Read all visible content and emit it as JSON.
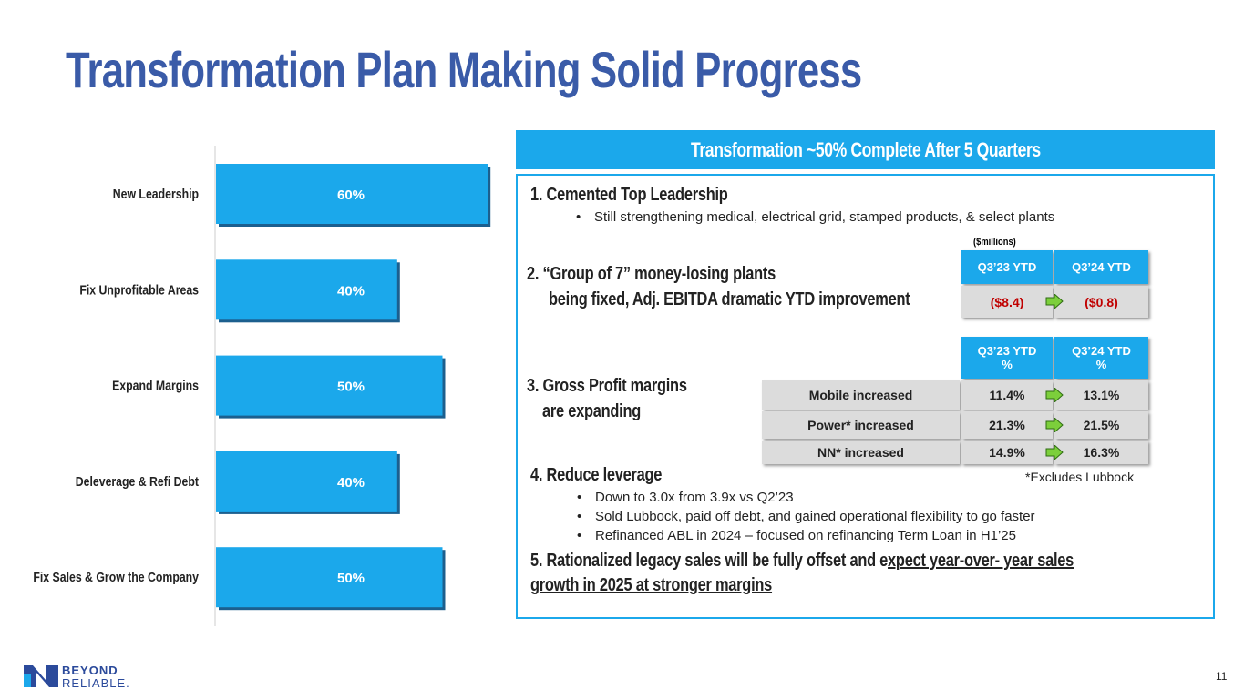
{
  "title": "Transformation Plan Making Solid Progress",
  "chart_data": {
    "type": "bar",
    "orientation": "horizontal",
    "categories": [
      "New Leadership",
      "Fix Unprofitable Areas",
      "Expand Margins",
      "Deleverage & Refi Debt",
      "Fix Sales & Grow the Company"
    ],
    "values": [
      60,
      40,
      50,
      40,
      50
    ],
    "value_labels": [
      "60%",
      "40%",
      "50%",
      "40%",
      "50%"
    ],
    "color": "#1ba8eb",
    "xlim": [
      0,
      100
    ]
  },
  "panel": {
    "banner": "Transformation ~50% Complete After 5 Quarters",
    "item1": {
      "heading": "1. Cemented Top Leadership",
      "bullets": [
        "Still strengthening medical, electrical grid, stamped products, & select plants"
      ]
    },
    "item2": {
      "lines": [
        "2. “Group of 7” money-losing plants",
        "being fixed, Adj. EBITDA dramatic YTD  improvement"
      ]
    },
    "ebitda_table": {
      "unit": "($millions)",
      "headers": [
        "Q3’23 YTD",
        "Q3’24 YTD"
      ],
      "values": [
        "($8.4)",
        "($0.8)"
      ]
    },
    "item3": {
      "lines": [
        "3. Gross Profit margins",
        "are expanding"
      ]
    },
    "margin_table": {
      "headers": [
        {
          "top": "Q3’23 YTD",
          "bottom": "%"
        },
        {
          "top": "Q3’24 YTD",
          "bottom": "%"
        }
      ],
      "rows": [
        [
          "Mobile increased",
          "11.4%",
          "13.1%"
        ],
        [
          "Power* increased",
          "21.3%",
          "21.5%"
        ],
        [
          "NN* increased",
          "14.9%",
          "16.3%"
        ]
      ]
    },
    "footnote": "*Excludes Lubbock",
    "item4": {
      "heading": "4. Reduce leverage",
      "bullets": [
        "Down to  3.0x from 3.9x vs Q2’23",
        "Sold Lubbock, paid off debt, and gained operational flexibility to go faster",
        "Refinanced ABL in 2024 – focused on refinancing Term Loan in H1’25"
      ]
    },
    "item5": {
      "plain": "5. Rationalized legacy sales will be fully offset and e",
      "underlined": "xpect year-over- year sales growth in 2025 at stronger margins"
    }
  },
  "logo": {
    "line1": "BEYOND",
    "line2": "RELIABLE."
  },
  "page_number": "11"
}
